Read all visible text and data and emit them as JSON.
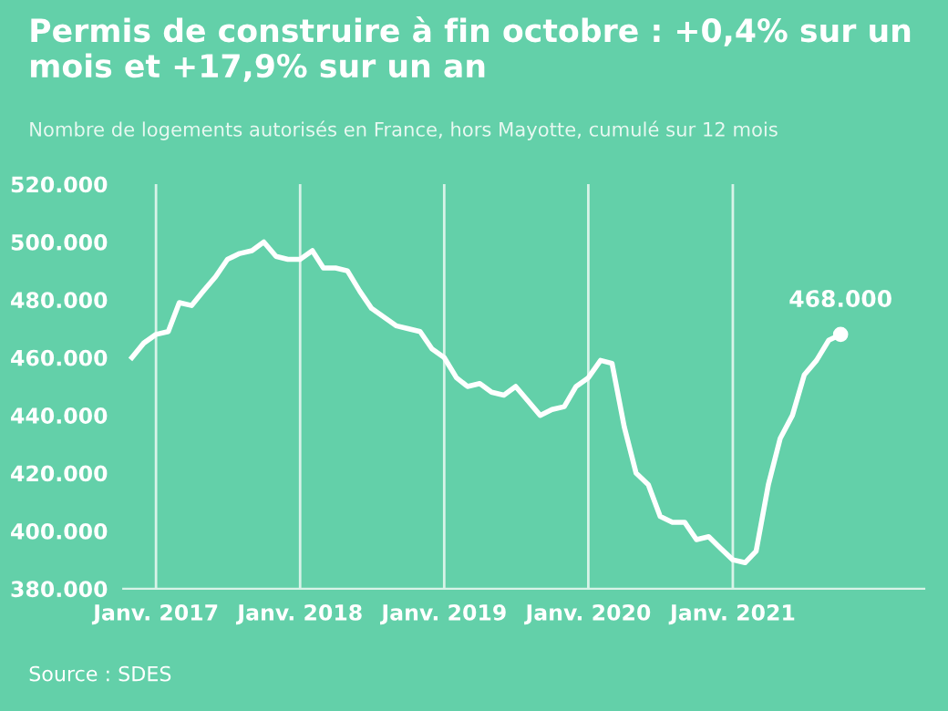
{
  "chart_data": {
    "type": "line",
    "title": "Permis de construire à fin octobre : +0,4% sur un mois et +17,9% sur un an",
    "subtitle": "Nombre de logements autorisés en France, hors Mayotte, cumulé sur 12 mois",
    "x": [
      "2016-11",
      "2016-12",
      "2017-01",
      "2017-02",
      "2017-03",
      "2017-04",
      "2017-05",
      "2017-06",
      "2017-07",
      "2017-08",
      "2017-09",
      "2017-10",
      "2017-11",
      "2017-12",
      "2018-01",
      "2018-02",
      "2018-03",
      "2018-04",
      "2018-05",
      "2018-06",
      "2018-07",
      "2018-08",
      "2018-09",
      "2018-10",
      "2018-11",
      "2018-12",
      "2019-01",
      "2019-02",
      "2019-03",
      "2019-04",
      "2019-05",
      "2019-06",
      "2019-07",
      "2019-08",
      "2019-09",
      "2019-10",
      "2019-11",
      "2019-12",
      "2020-01",
      "2020-02",
      "2020-03",
      "2020-04",
      "2020-05",
      "2020-06",
      "2020-07",
      "2020-08",
      "2020-09",
      "2020-10",
      "2020-11",
      "2020-12",
      "2021-01",
      "2021-02",
      "2021-03",
      "2021-04",
      "2021-05",
      "2021-06",
      "2021-07",
      "2021-08",
      "2021-09",
      "2021-10"
    ],
    "series": [
      {
        "color": "#ffffff",
        "values": [
          460000,
          465000,
          468000,
          469000,
          479000,
          478000,
          483000,
          488000,
          494000,
          496000,
          497000,
          500000,
          495000,
          494000,
          494000,
          497000,
          491000,
          491000,
          490000,
          483000,
          477000,
          474000,
          471000,
          470000,
          469000,
          463000,
          460000,
          453000,
          450000,
          451000,
          448000,
          447000,
          450000,
          445000,
          440000,
          442000,
          443000,
          450000,
          453000,
          459000,
          458000,
          436000,
          420000,
          416000,
          405000,
          403000,
          403000,
          397000,
          398000,
          394000,
          390000,
          389000,
          393000,
          416000,
          432000,
          440000,
          454000,
          459000,
          466000,
          468000
        ]
      }
    ],
    "xlim": [
      "2016-10-10",
      "2022-05-01"
    ],
    "xticks": [
      {
        "value": "2017-01",
        "label": "Janv. 2017"
      },
      {
        "value": "2018-01",
        "label": "Janv. 2018"
      },
      {
        "value": "2019-01",
        "label": "Janv. 2019"
      },
      {
        "value": "2020-01",
        "label": "Janv. 2020"
      },
      {
        "value": "2021-01",
        "label": "Janv. 2021"
      }
    ],
    "ylim": [
      380000,
      520000
    ],
    "yticks": [
      {
        "value": 380000,
        "label": "380.000"
      },
      {
        "value": 400000,
        "label": "400.000"
      },
      {
        "value": 420000,
        "label": "420.000"
      },
      {
        "value": 440000,
        "label": "440.000"
      },
      {
        "value": 460000,
        "label": "460.000"
      },
      {
        "value": 480000,
        "label": "480.000"
      },
      {
        "value": 500000,
        "label": "500.000"
      },
      {
        "value": 520000,
        "label": "520.000"
      }
    ],
    "grid": "x",
    "marker": "none",
    "line_style": "solid",
    "annotations": [
      {
        "text": "468.000",
        "x": "2021-10",
        "y": 468000
      },
      "Source : SDES"
    ]
  }
}
